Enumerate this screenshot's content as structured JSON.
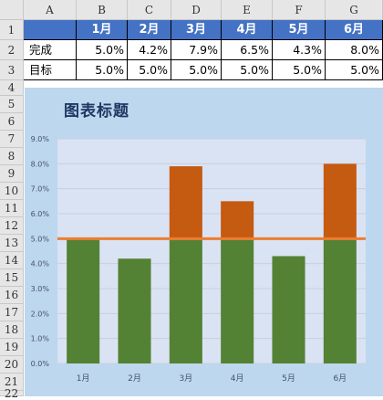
{
  "sheet": {
    "columns": [
      "A",
      "B",
      "C",
      "D",
      "E",
      "F",
      "G"
    ],
    "rows": [
      "1",
      "2",
      "3",
      "4",
      "5",
      "6",
      "7",
      "8",
      "9",
      "10",
      "11",
      "12",
      "13",
      "14",
      "15",
      "16",
      "17",
      "18",
      "19",
      "20",
      "21",
      "22"
    ],
    "header_row": [
      "",
      "1月",
      "2月",
      "3月",
      "4月",
      "5月",
      "6月"
    ],
    "data_rows": [
      {
        "label": "完成",
        "values": [
          "5.0%",
          "4.2%",
          "7.9%",
          "6.5%",
          "4.3%",
          "8.0%"
        ]
      },
      {
        "label": "目标",
        "values": [
          "5.0%",
          "5.0%",
          "5.0%",
          "5.0%",
          "5.0%",
          "5.0%"
        ]
      }
    ]
  },
  "chart_data": {
    "type": "bar",
    "title": "图表标题",
    "categories": [
      "1月",
      "2月",
      "3月",
      "4月",
      "5月",
      "6月"
    ],
    "series": [
      {
        "values": [
          5.0,
          4.2,
          5.0,
          5.0,
          4.3,
          5.0
        ],
        "color": "#548235"
      },
      {
        "values": [
          0.0,
          0.0,
          2.9,
          1.5,
          0.0,
          3.0
        ],
        "color": "#c55a11"
      }
    ],
    "target": {
      "value": 5.0,
      "color": "#ed7d31"
    },
    "yticks": [
      "0.0%",
      "1.0%",
      "2.0%",
      "3.0%",
      "4.0%",
      "5.0%",
      "6.0%",
      "7.0%",
      "8.0%",
      "9.0%"
    ],
    "ylim": [
      0,
      9
    ],
    "stacked": true,
    "grid": true,
    "plot_bg": "#dae3f3",
    "area_bg": "#bdd7ee"
  }
}
